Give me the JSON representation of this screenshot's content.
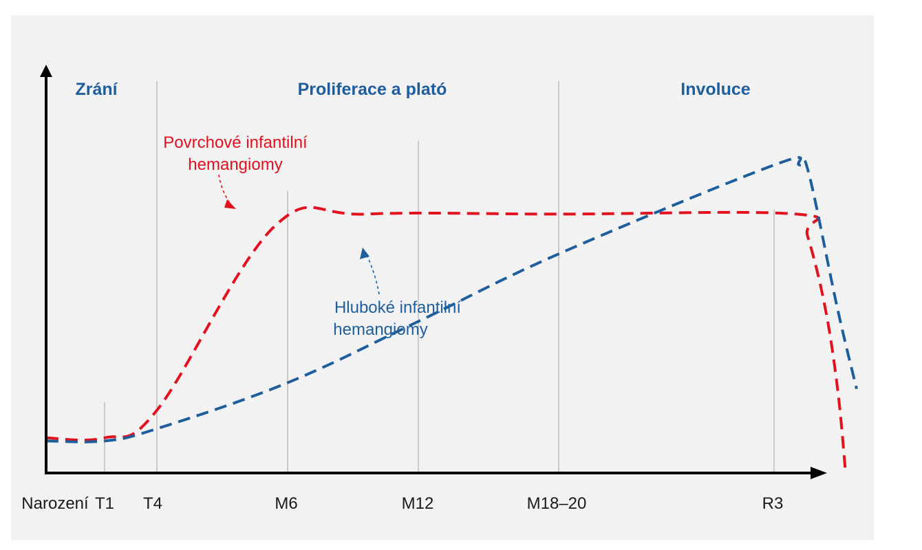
{
  "chart_data": {
    "type": "line",
    "title": "",
    "xlabel": "",
    "ylabel": "",
    "x_ticks": [
      "Narození",
      "T1",
      "T4",
      "M6",
      "M12",
      "M18–20",
      "R3"
    ],
    "phases": [
      {
        "label": "Zrání"
      },
      {
        "label": "Proliferace a plató"
      },
      {
        "label": "Involuce"
      }
    ],
    "series": [
      {
        "name": "Povrchové infantilní hemangiomy",
        "label_lines": [
          "Povrchové infantilní",
          "hemangiomy"
        ],
        "color": "#e3101e",
        "style": "dashed",
        "points": [
          {
            "x": 0,
            "y": 0.11
          },
          {
            "x": 1,
            "y": 0.11
          },
          {
            "x": 2,
            "y": 0.2
          },
          {
            "x": 2.9,
            "y": 0.8
          },
          {
            "x": 3.6,
            "y": 0.84
          },
          {
            "x": 5,
            "y": 0.84
          },
          {
            "x": 7.4,
            "y": 0.84
          },
          {
            "x": 8.1,
            "y": 0.77
          },
          {
            "x": 9.2,
            "y": 0.54
          },
          {
            "x": 10,
            "y": 0.27
          },
          {
            "x": 10.5,
            "y": 0.0
          }
        ]
      },
      {
        "name": "Hluboké infantilní hemangiomy",
        "label_lines": [
          "Hluboké infantilní",
          "hemangiomy"
        ],
        "color": "#1f5e9c",
        "style": "dashed",
        "points": [
          {
            "x": 0,
            "y": 0.1
          },
          {
            "x": 1,
            "y": 0.1
          },
          {
            "x": 2,
            "y": 0.14
          },
          {
            "x": 3,
            "y": 0.29
          },
          {
            "x": 4,
            "y": 0.49
          },
          {
            "x": 5,
            "y": 0.71
          },
          {
            "x": 6,
            "y": 1.0
          },
          {
            "x": 7.6,
            "y": 1.0
          },
          {
            "x": 8.2,
            "y": 0.97
          },
          {
            "x": 10,
            "y": 0.53
          },
          {
            "x": 11.2,
            "y": 0.27
          }
        ]
      }
    ],
    "grid": false,
    "legend": "none"
  }
}
